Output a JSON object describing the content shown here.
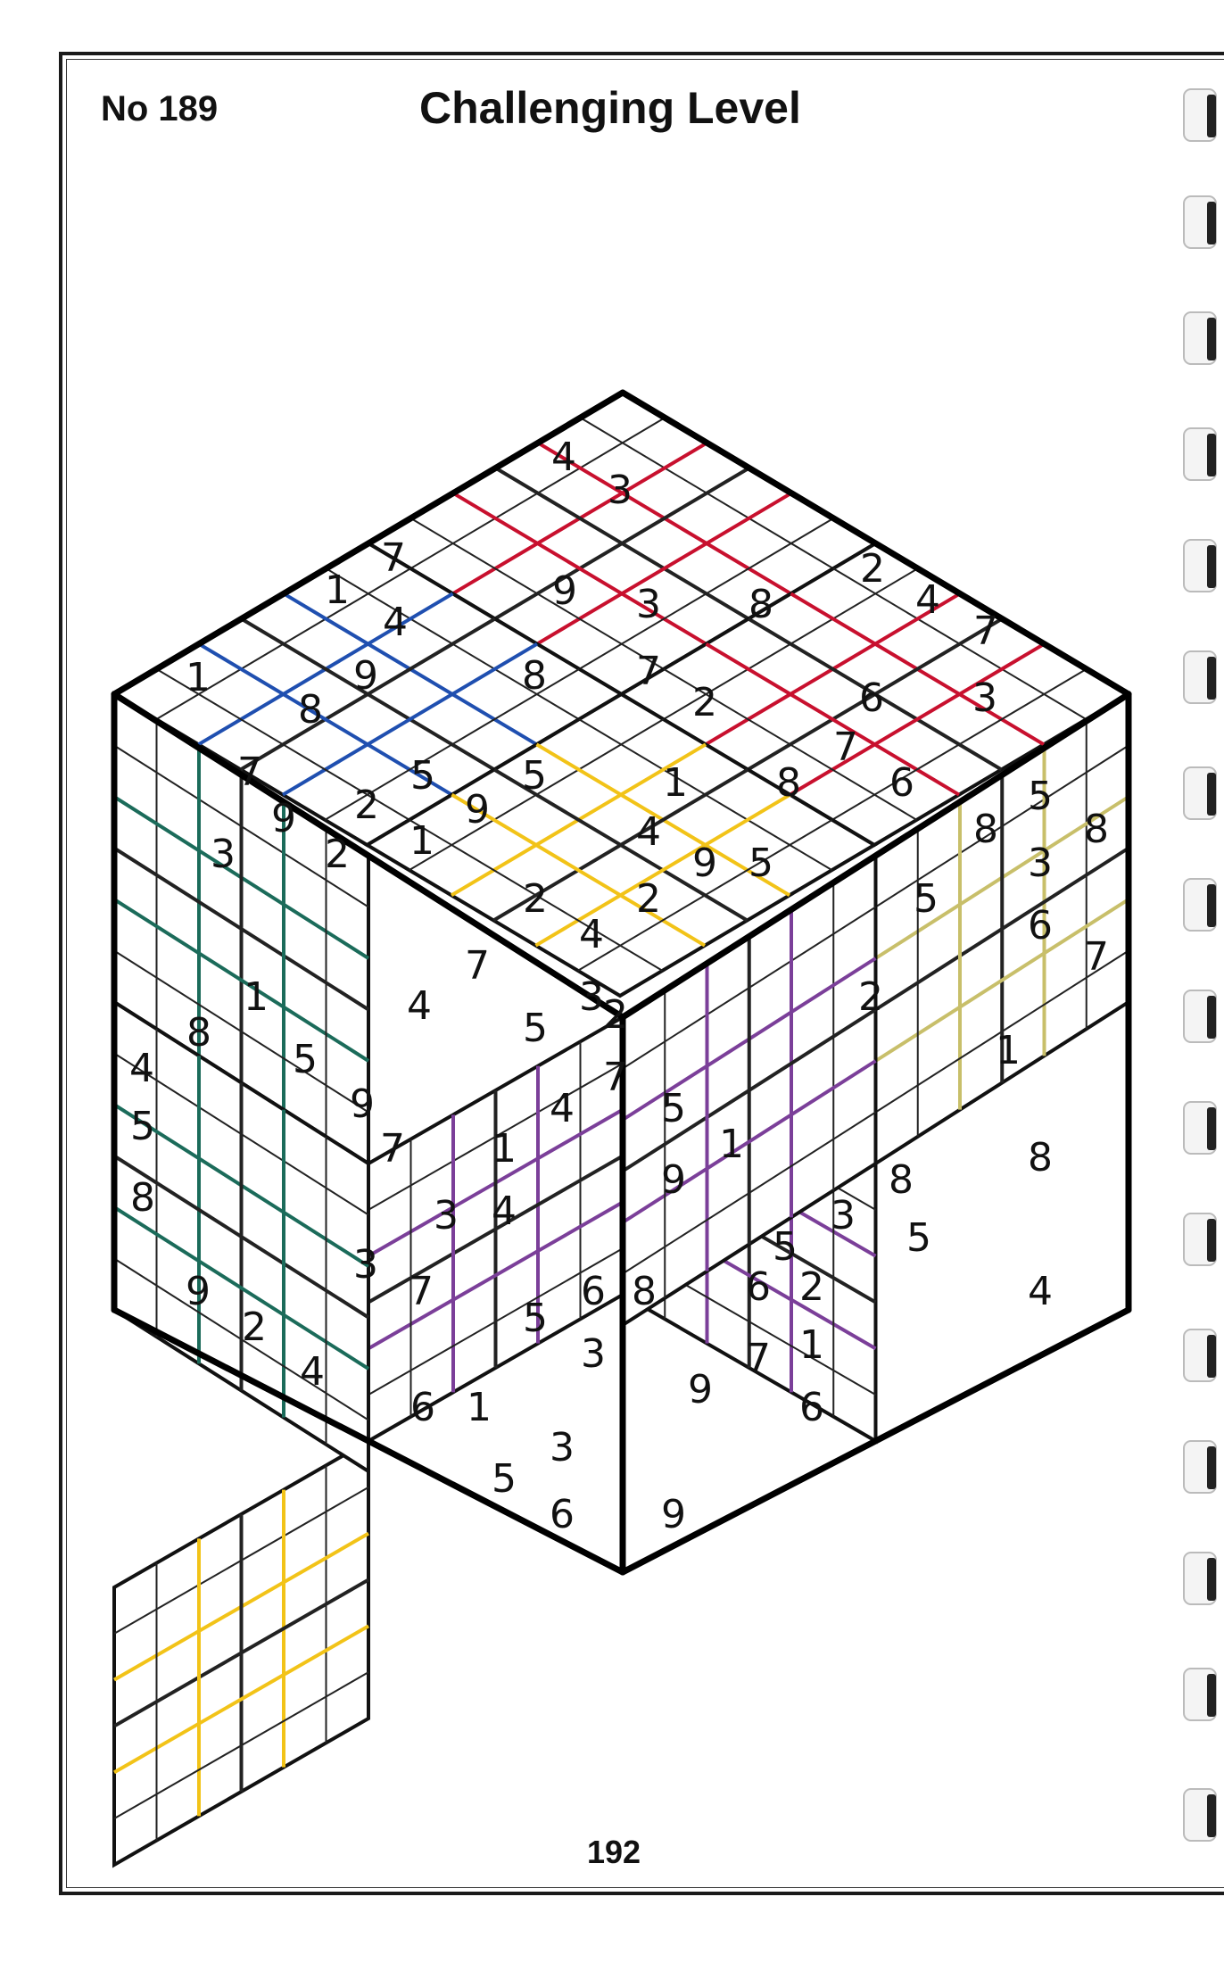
{
  "header": {
    "puzzle_no": "No 189",
    "title": "Challenging Level"
  },
  "footer": {
    "page_number": "192"
  },
  "colors": {
    "red": "#c8102e",
    "blue": "#1f4fb0",
    "green": "#1b6b5a",
    "khaki": "#c8bf6a",
    "yellow": "#f2c318",
    "purple": "#7b3f99",
    "outline": "#111111"
  },
  "board": {
    "faces": [
      {
        "name": "top-face-block-top",
        "kind": "top",
        "color": "red"
      },
      {
        "name": "top-face-block-left",
        "kind": "top",
        "color": "blue"
      },
      {
        "name": "right-face-block-upper",
        "kind": "right",
        "color": "khaki"
      },
      {
        "name": "left-face-block-upper",
        "kind": "left",
        "color": "green"
      },
      {
        "name": "top-face-block-mid-right",
        "kind": "top",
        "color": "red"
      },
      {
        "name": "top-face-block-mid-left",
        "kind": "top",
        "color": "yellow"
      },
      {
        "name": "top-face-block-bottom-left",
        "kind": "top",
        "color": "purple"
      },
      {
        "name": "top-face-block-center",
        "kind": "top",
        "color": "purple"
      },
      {
        "name": "top-face-block-bottom",
        "kind": "top",
        "color": "yellow"
      },
      {
        "name": "left-face-block-lower",
        "kind": "left",
        "color": "green"
      },
      {
        "name": "right-face-block-lower",
        "kind": "right",
        "color": "purple"
      }
    ],
    "digits": [
      {
        "v": "4"
      },
      {
        "v": "3"
      },
      {
        "v": "7"
      },
      {
        "v": "1"
      },
      {
        "v": "4"
      },
      {
        "v": "9"
      },
      {
        "v": "1"
      },
      {
        "v": "7"
      },
      {
        "v": "9"
      },
      {
        "v": "3"
      },
      {
        "v": "2"
      },
      {
        "v": "9"
      },
      {
        "v": "8"
      },
      {
        "v": "2"
      },
      {
        "v": "5"
      },
      {
        "v": "1"
      },
      {
        "v": "8"
      },
      {
        "v": "5"
      },
      {
        "v": "9"
      },
      {
        "v": "3"
      },
      {
        "v": "8"
      },
      {
        "v": "7"
      },
      {
        "v": "2"
      },
      {
        "v": "2"
      },
      {
        "v": "4"
      },
      {
        "v": "7"
      },
      {
        "v": "6"
      },
      {
        "v": "3"
      },
      {
        "v": "7"
      },
      {
        "v": "1"
      },
      {
        "v": "8"
      },
      {
        "v": "6"
      },
      {
        "v": "4"
      },
      {
        "v": "9"
      },
      {
        "v": "5"
      },
      {
        "v": "2"
      },
      {
        "v": "5"
      },
      {
        "v": "2"
      },
      {
        "v": "5"
      },
      {
        "v": "8"
      },
      {
        "v": "8"
      },
      {
        "v": "3"
      },
      {
        "v": "6"
      },
      {
        "v": "7"
      },
      {
        "v": "1"
      },
      {
        "v": "8"
      },
      {
        "v": "4"
      },
      {
        "v": "4"
      },
      {
        "v": "5"
      },
      {
        "v": "9"
      },
      {
        "v": "2"
      },
      {
        "v": "4"
      },
      {
        "v": "3"
      },
      {
        "v": "7"
      },
      {
        "v": "5"
      },
      {
        "v": "2"
      },
      {
        "v": "7"
      },
      {
        "v": "4"
      },
      {
        "v": "5"
      },
      {
        "v": "7"
      },
      {
        "v": "1"
      },
      {
        "v": "3"
      },
      {
        "v": "4"
      },
      {
        "v": "1"
      },
      {
        "v": "9"
      },
      {
        "v": "8"
      },
      {
        "v": "3"
      },
      {
        "v": "5"
      },
      {
        "v": "1"
      },
      {
        "v": "5"
      },
      {
        "v": "8"
      },
      {
        "v": "9"
      },
      {
        "v": "2"
      },
      {
        "v": "4"
      },
      {
        "v": "3"
      },
      {
        "v": "7"
      },
      {
        "v": "6"
      },
      {
        "v": "5"
      },
      {
        "v": "6"
      },
      {
        "v": "1"
      },
      {
        "v": "3"
      },
      {
        "v": "8"
      },
      {
        "v": "6"
      },
      {
        "v": "2"
      },
      {
        "v": "7"
      },
      {
        "v": "1"
      },
      {
        "v": "9"
      },
      {
        "v": "6"
      },
      {
        "v": "5"
      },
      {
        "v": "8"
      },
      {
        "v": "4"
      },
      {
        "v": "3"
      },
      {
        "v": "5"
      },
      {
        "v": "6"
      },
      {
        "v": "9"
      }
    ]
  }
}
